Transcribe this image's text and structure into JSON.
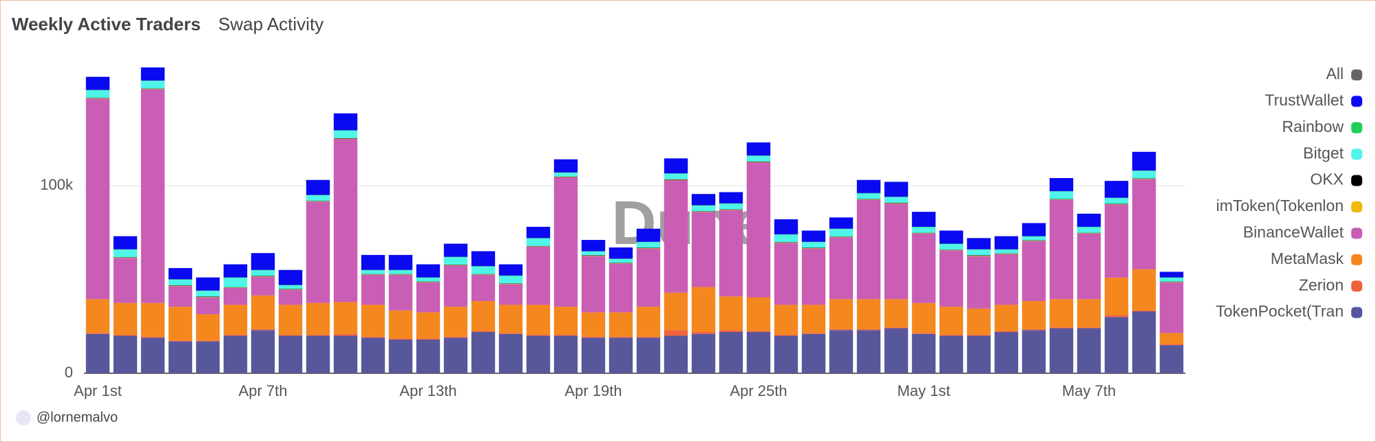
{
  "tabs": [
    "Weekly Active Traders",
    "Swap Activity"
  ],
  "author": "@lornemalvo",
  "watermark": "Dune",
  "chart_data": {
    "type": "stacked-bar",
    "categories": [
      "Apr 1st",
      null,
      null,
      null,
      null,
      null,
      "Apr 7th",
      null,
      null,
      null,
      null,
      null,
      "Apr 13th",
      null,
      null,
      null,
      null,
      null,
      "Apr 19th",
      null,
      null,
      null,
      null,
      null,
      "Apr 25th",
      null,
      null,
      null,
      null,
      null,
      "May 1st",
      null,
      null,
      null,
      null,
      null,
      "May 7th",
      null,
      null,
      null
    ],
    "ylim": [
      0,
      180000
    ],
    "yticks": [
      0,
      {
        "value": 100000,
        "label": "100k"
      }
    ],
    "grid": true,
    "legend": "right",
    "series": [
      {
        "name": "All",
        "color": "#666666",
        "values": [
          null,
          null,
          null,
          null,
          null,
          null,
          null,
          null,
          null,
          null,
          null,
          null,
          null,
          null,
          null,
          null,
          null,
          null,
          null,
          null,
          null,
          null,
          null,
          null,
          null,
          null,
          null,
          null,
          null,
          null,
          null,
          null,
          null,
          null,
          null,
          null,
          null,
          null,
          null,
          null
        ]
      },
      {
        "name": "TrustWallet",
        "color": "#0a0af0",
        "values": [
          7000,
          7000,
          7000,
          6000,
          7000,
          7000,
          9000,
          8000,
          8000,
          9000,
          8000,
          8000,
          7000,
          7000,
          8000,
          6000,
          6000,
          7000,
          6000,
          6000,
          7000,
          8000,
          6000,
          6000,
          7000,
          8000,
          6000,
          6000,
          7000,
          8000,
          8000,
          7000,
          6000,
          7000,
          7000,
          7000,
          7000,
          9000,
          10000,
          3000
        ]
      },
      {
        "name": "Rainbow",
        "color": "#1fcf5a",
        "values": [
          200,
          200,
          200,
          200,
          200,
          200,
          200,
          200,
          200,
          200,
          200,
          200,
          200,
          200,
          200,
          200,
          200,
          200,
          200,
          200,
          200,
          200,
          200,
          200,
          200,
          200,
          200,
          200,
          200,
          200,
          200,
          200,
          200,
          200,
          200,
          200,
          200,
          200,
          200,
          200
        ]
      },
      {
        "name": "Bitget",
        "color": "#4ff5e8",
        "values": [
          4000,
          4000,
          4000,
          3000,
          3000,
          5000,
          3000,
          2000,
          3000,
          4000,
          2000,
          2000,
          2000,
          4000,
          4000,
          4000,
          4000,
          2000,
          2000,
          2000,
          3000,
          3000,
          3000,
          3000,
          3000,
          4000,
          3000,
          4000,
          3000,
          3000,
          3000,
          3000,
          3000,
          2000,
          2000,
          4000,
          3000,
          3000,
          4000,
          2000
        ]
      },
      {
        "name": "OKX",
        "color": "#000000",
        "values": [
          200,
          200,
          200,
          200,
          200,
          200,
          200,
          200,
          200,
          200,
          200,
          200,
          200,
          200,
          200,
          200,
          200,
          200,
          200,
          200,
          200,
          200,
          200,
          200,
          200,
          200,
          200,
          200,
          200,
          200,
          200,
          200,
          200,
          200,
          200,
          200,
          200,
          200,
          200,
          200
        ]
      },
      {
        "name": "imToken(Tokenlon",
        "color": "#f0b90b",
        "values": [
          200,
          200,
          200,
          200,
          200,
          200,
          200,
          200,
          200,
          200,
          200,
          200,
          200,
          200,
          200,
          200,
          200,
          200,
          200,
          200,
          200,
          200,
          200,
          200,
          200,
          200,
          200,
          200,
          200,
          200,
          200,
          200,
          200,
          200,
          200,
          200,
          200,
          200,
          200,
          200
        ]
      },
      {
        "name": "BinanceWallet",
        "color": "#c95eb4",
        "values": [
          107000,
          24000,
          114000,
          11000,
          9000,
          9000,
          10000,
          8000,
          54000,
          87000,
          16000,
          19000,
          16000,
          22000,
          14000,
          11000,
          31000,
          69000,
          30000,
          26000,
          31000,
          60000,
          40000,
          46000,
          72000,
          33000,
          30000,
          33000,
          53000,
          51000,
          37000,
          30000,
          28000,
          27000,
          32000,
          53000,
          35000,
          39000,
          48000,
          27000
        ]
      },
      {
        "name": "MetaMask",
        "color": "#f5871f",
        "values": [
          18000,
          17000,
          18000,
          18000,
          14000,
          16000,
          18000,
          16000,
          17000,
          17000,
          17000,
          15000,
          14000,
          16000,
          16000,
          15000,
          16000,
          15000,
          13000,
          13000,
          16000,
          20000,
          24000,
          18000,
          18000,
          16000,
          15000,
          16000,
          16000,
          15000,
          16000,
          15000,
          14000,
          14000,
          15000,
          15000,
          15000,
          20000,
          22000,
          6000
        ]
      },
      {
        "name": "Zerion",
        "color": "#f0623c",
        "values": [
          500,
          500,
          500,
          500,
          500,
          500,
          500,
          500,
          500,
          1000,
          500,
          500,
          500,
          500,
          500,
          500,
          500,
          500,
          500,
          500,
          500,
          3000,
          1000,
          1000,
          500,
          500,
          500,
          500,
          500,
          500,
          500,
          500,
          500,
          500,
          500,
          500,
          500,
          1000,
          500,
          500
        ]
      },
      {
        "name": "TokenPocket(Tran",
        "color": "#59579c",
        "values": [
          21000,
          20000,
          19000,
          17000,
          17000,
          20000,
          23000,
          20000,
          20000,
          20000,
          19000,
          18000,
          18000,
          19000,
          22000,
          21000,
          20000,
          20000,
          19000,
          19000,
          19000,
          20000,
          21000,
          22000,
          22000,
          20000,
          21000,
          23000,
          23000,
          24000,
          21000,
          20000,
          20000,
          22000,
          23000,
          24000,
          24000,
          30000,
          33000,
          15000
        ]
      }
    ]
  }
}
